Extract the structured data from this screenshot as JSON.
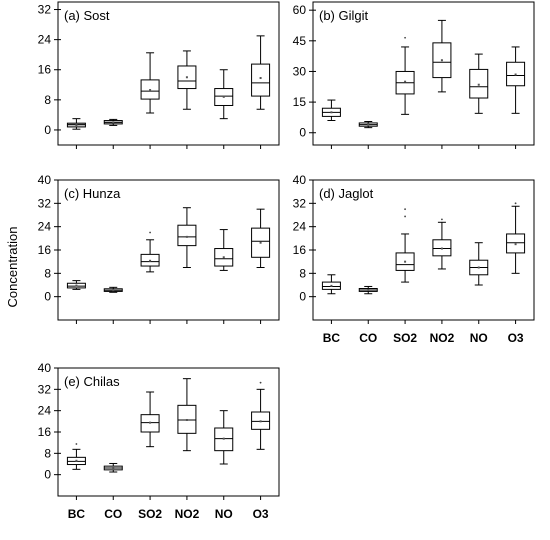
{
  "figure": {
    "ylabel": "Concentration"
  },
  "chart_data": [
    {
      "type": "box",
      "title": "(a) Sost",
      "categories": [
        "BC",
        "CO",
        "SO2",
        "NO2",
        "NO",
        "O3"
      ],
      "show_xticklabels": false,
      "ylim": [
        -4,
        34
      ],
      "yticks": [
        0,
        8,
        16,
        24,
        32
      ],
      "boxes": [
        {
          "min": 0.2,
          "q1": 0.8,
          "median": 1.4,
          "q3": 1.8,
          "max": 3.0,
          "mean": 1.3,
          "outliers": []
        },
        {
          "min": 1.2,
          "q1": 1.6,
          "median": 2.0,
          "q3": 2.5,
          "max": 2.8,
          "mean": 2.0,
          "outliers": []
        },
        {
          "min": 4.5,
          "q1": 8.2,
          "median": 10.3,
          "q3": 13.3,
          "max": 20.5,
          "mean": 10.6,
          "outliers": []
        },
        {
          "min": 5.5,
          "q1": 11.0,
          "median": 13.0,
          "q3": 17.0,
          "max": 21.0,
          "mean": 14.0,
          "outliers": []
        },
        {
          "min": 3.0,
          "q1": 6.5,
          "median": 9.0,
          "q3": 11.0,
          "max": 16.0,
          "mean": 8.8,
          "outliers": []
        },
        {
          "min": 5.5,
          "q1": 9.0,
          "median": 12.5,
          "q3": 17.5,
          "max": 25.0,
          "mean": 13.8,
          "outliers": []
        }
      ]
    },
    {
      "type": "box",
      "title": "(b) Gilgit",
      "categories": [
        "BC",
        "CO",
        "SO2",
        "NO2",
        "NO",
        "O3"
      ],
      "show_xticklabels": false,
      "ylim": [
        -6,
        64
      ],
      "yticks": [
        0,
        15,
        30,
        45,
        60
      ],
      "boxes": [
        {
          "min": 6.0,
          "q1": 8.0,
          "median": 10.0,
          "q3": 12.0,
          "max": 16.0,
          "mean": 10.0,
          "outliers": []
        },
        {
          "min": 2.5,
          "q1": 3.2,
          "median": 4.0,
          "q3": 4.8,
          "max": 5.5,
          "mean": 4.0,
          "outliers": []
        },
        {
          "min": 9.0,
          "q1": 19.0,
          "median": 24.5,
          "q3": 30.0,
          "max": 42.0,
          "mean": 25.0,
          "outliers": [
            46.5
          ]
        },
        {
          "min": 20.0,
          "q1": 27.0,
          "median": 34.5,
          "q3": 44.0,
          "max": 55.0,
          "mean": 35.5,
          "outliers": []
        },
        {
          "min": 9.5,
          "q1": 17.0,
          "median": 22.5,
          "q3": 31.0,
          "max": 38.5,
          "mean": 23.5,
          "outliers": []
        },
        {
          "min": 9.5,
          "q1": 23.0,
          "median": 28.0,
          "q3": 34.5,
          "max": 42.0,
          "mean": 28.5,
          "outliers": []
        }
      ]
    },
    {
      "type": "box",
      "title": "(c) Hunza",
      "categories": [
        "BC",
        "CO",
        "SO2",
        "NO2",
        "NO",
        "O3"
      ],
      "show_xticklabels": false,
      "ylim": [
        -8,
        40
      ],
      "yticks": [
        0,
        8,
        16,
        24,
        32,
        40
      ],
      "boxes": [
        {
          "min": 2.5,
          "q1": 3.0,
          "median": 3.6,
          "q3": 4.6,
          "max": 5.5,
          "mean": 3.8,
          "outliers": []
        },
        {
          "min": 1.5,
          "q1": 1.8,
          "median": 2.2,
          "q3": 2.7,
          "max": 3.2,
          "mean": 2.2,
          "outliers": []
        },
        {
          "min": 8.5,
          "q1": 10.5,
          "median": 12.0,
          "q3": 14.5,
          "max": 19.5,
          "mean": 12.3,
          "outliers": [
            22.0
          ]
        },
        {
          "min": 10.0,
          "q1": 17.5,
          "median": 20.5,
          "q3": 24.5,
          "max": 30.5,
          "mean": 20.5,
          "outliers": []
        },
        {
          "min": 9.0,
          "q1": 10.5,
          "median": 13.0,
          "q3": 16.5,
          "max": 23.0,
          "mean": 13.5,
          "outliers": []
        },
        {
          "min": 10.0,
          "q1": 13.5,
          "median": 19.0,
          "q3": 23.5,
          "max": 30.0,
          "mean": 18.5,
          "outliers": []
        }
      ]
    },
    {
      "type": "box",
      "title": "(d) Jaglot",
      "categories": [
        "BC",
        "CO",
        "SO2",
        "NO2",
        "NO",
        "O3"
      ],
      "show_xticklabels": true,
      "ylim": [
        -8,
        40
      ],
      "yticks": [
        0,
        8,
        16,
        24,
        32,
        40
      ],
      "boxes": [
        {
          "min": 1.0,
          "q1": 2.5,
          "median": 3.5,
          "q3": 5.0,
          "max": 7.5,
          "mean": 3.7,
          "outliers": []
        },
        {
          "min": 1.0,
          "q1": 1.8,
          "median": 2.3,
          "q3": 2.8,
          "max": 3.5,
          "mean": 2.3,
          "outliers": []
        },
        {
          "min": 5.0,
          "q1": 9.0,
          "median": 11.0,
          "q3": 15.0,
          "max": 21.5,
          "mean": 12.0,
          "outliers": [
            27.5,
            30.0
          ]
        },
        {
          "min": 9.5,
          "q1": 14.0,
          "median": 16.5,
          "q3": 19.5,
          "max": 25.5,
          "mean": 16.5,
          "outliers": [
            26.5
          ]
        },
        {
          "min": 4.0,
          "q1": 7.5,
          "median": 10.0,
          "q3": 12.5,
          "max": 18.5,
          "mean": 10.0,
          "outliers": []
        },
        {
          "min": 8.0,
          "q1": 15.0,
          "median": 18.5,
          "q3": 21.5,
          "max": 31.0,
          "mean": 18.0,
          "outliers": [
            32.0
          ]
        }
      ]
    },
    {
      "type": "box",
      "title": "(e) Chilas",
      "categories": [
        "BC",
        "CO",
        "SO2",
        "NO2",
        "NO",
        "O3"
      ],
      "show_xticklabels": true,
      "ylim": [
        -8,
        40
      ],
      "yticks": [
        0,
        8,
        16,
        24,
        32,
        40
      ],
      "boxes": [
        {
          "min": 2.0,
          "q1": 3.8,
          "median": 5.0,
          "q3": 6.5,
          "max": 9.5,
          "mean": 5.2,
          "outliers": [
            11.5
          ]
        },
        {
          "min": 1.0,
          "q1": 1.8,
          "median": 2.5,
          "q3": 3.2,
          "max": 4.2,
          "mean": 2.5,
          "outliers": []
        },
        {
          "min": 10.5,
          "q1": 16.0,
          "median": 19.5,
          "q3": 22.5,
          "max": 31.0,
          "mean": 19.5,
          "outliers": []
        },
        {
          "min": 9.0,
          "q1": 15.5,
          "median": 20.5,
          "q3": 26.0,
          "max": 36.0,
          "mean": 20.5,
          "outliers": []
        },
        {
          "min": 4.0,
          "q1": 9.0,
          "median": 13.5,
          "q3": 17.5,
          "max": 24.0,
          "mean": 13.5,
          "outliers": []
        },
        {
          "min": 9.5,
          "q1": 17.0,
          "median": 20.0,
          "q3": 23.5,
          "max": 32.0,
          "mean": 20.0,
          "outliers": [
            34.5
          ]
        }
      ]
    }
  ]
}
